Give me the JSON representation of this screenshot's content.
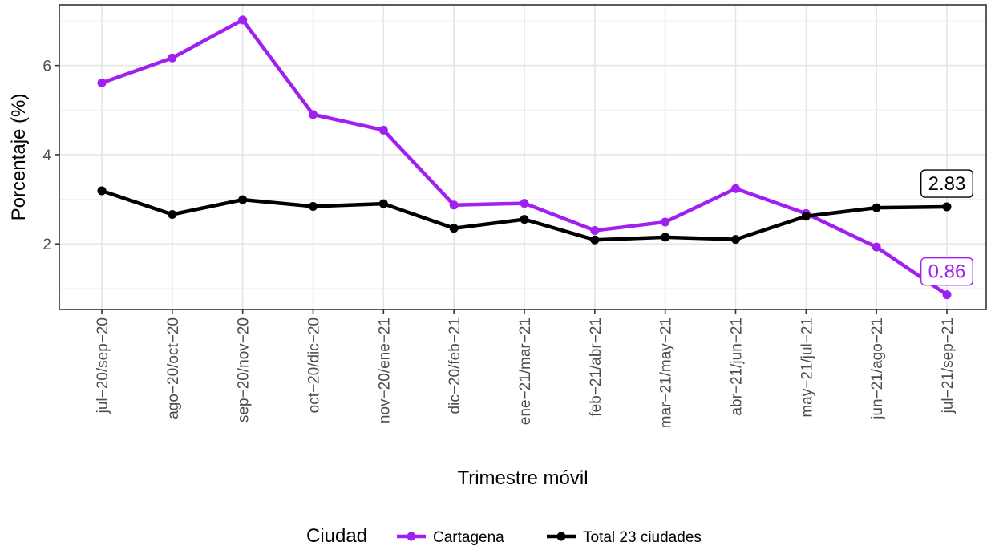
{
  "chart_data": {
    "type": "line",
    "x": [
      "jul−20/sep−20",
      "ago−20/oct−20",
      "sep−20/nov−20",
      "oct−20/dic−20",
      "nov−20/ene−21",
      "dic−20/feb−21",
      "ene−21/mar−21",
      "feb−21/abr−21",
      "mar−21/may−21",
      "abr−21/jun−21",
      "may−21/jul−21",
      "jun−21/ago−21",
      "jul−21/sep−21"
    ],
    "series": [
      {
        "name": "Cartagena",
        "color": "#a020f0",
        "values": [
          5.61,
          6.17,
          7.02,
          4.9,
          4.55,
          2.87,
          2.91,
          2.3,
          2.49,
          3.24,
          2.68,
          1.93,
          0.86
        ]
      },
      {
        "name": "Total 23 ciudades",
        "color": "#000000",
        "values": [
          3.19,
          2.66,
          2.99,
          2.84,
          2.9,
          2.35,
          2.55,
          2.09,
          2.15,
          2.1,
          2.62,
          2.81,
          2.83
        ]
      }
    ],
    "end_labels": [
      "0.86",
      "2.83"
    ],
    "xlabel": "Trimestre móvil",
    "ylabel": "Porcentaje (%)",
    "yticks": [
      2,
      4,
      6
    ],
    "ylim": [
      0.53,
      7.36
    ],
    "grid": true,
    "legend": {
      "title": "Ciudad",
      "position": "bottom"
    }
  }
}
